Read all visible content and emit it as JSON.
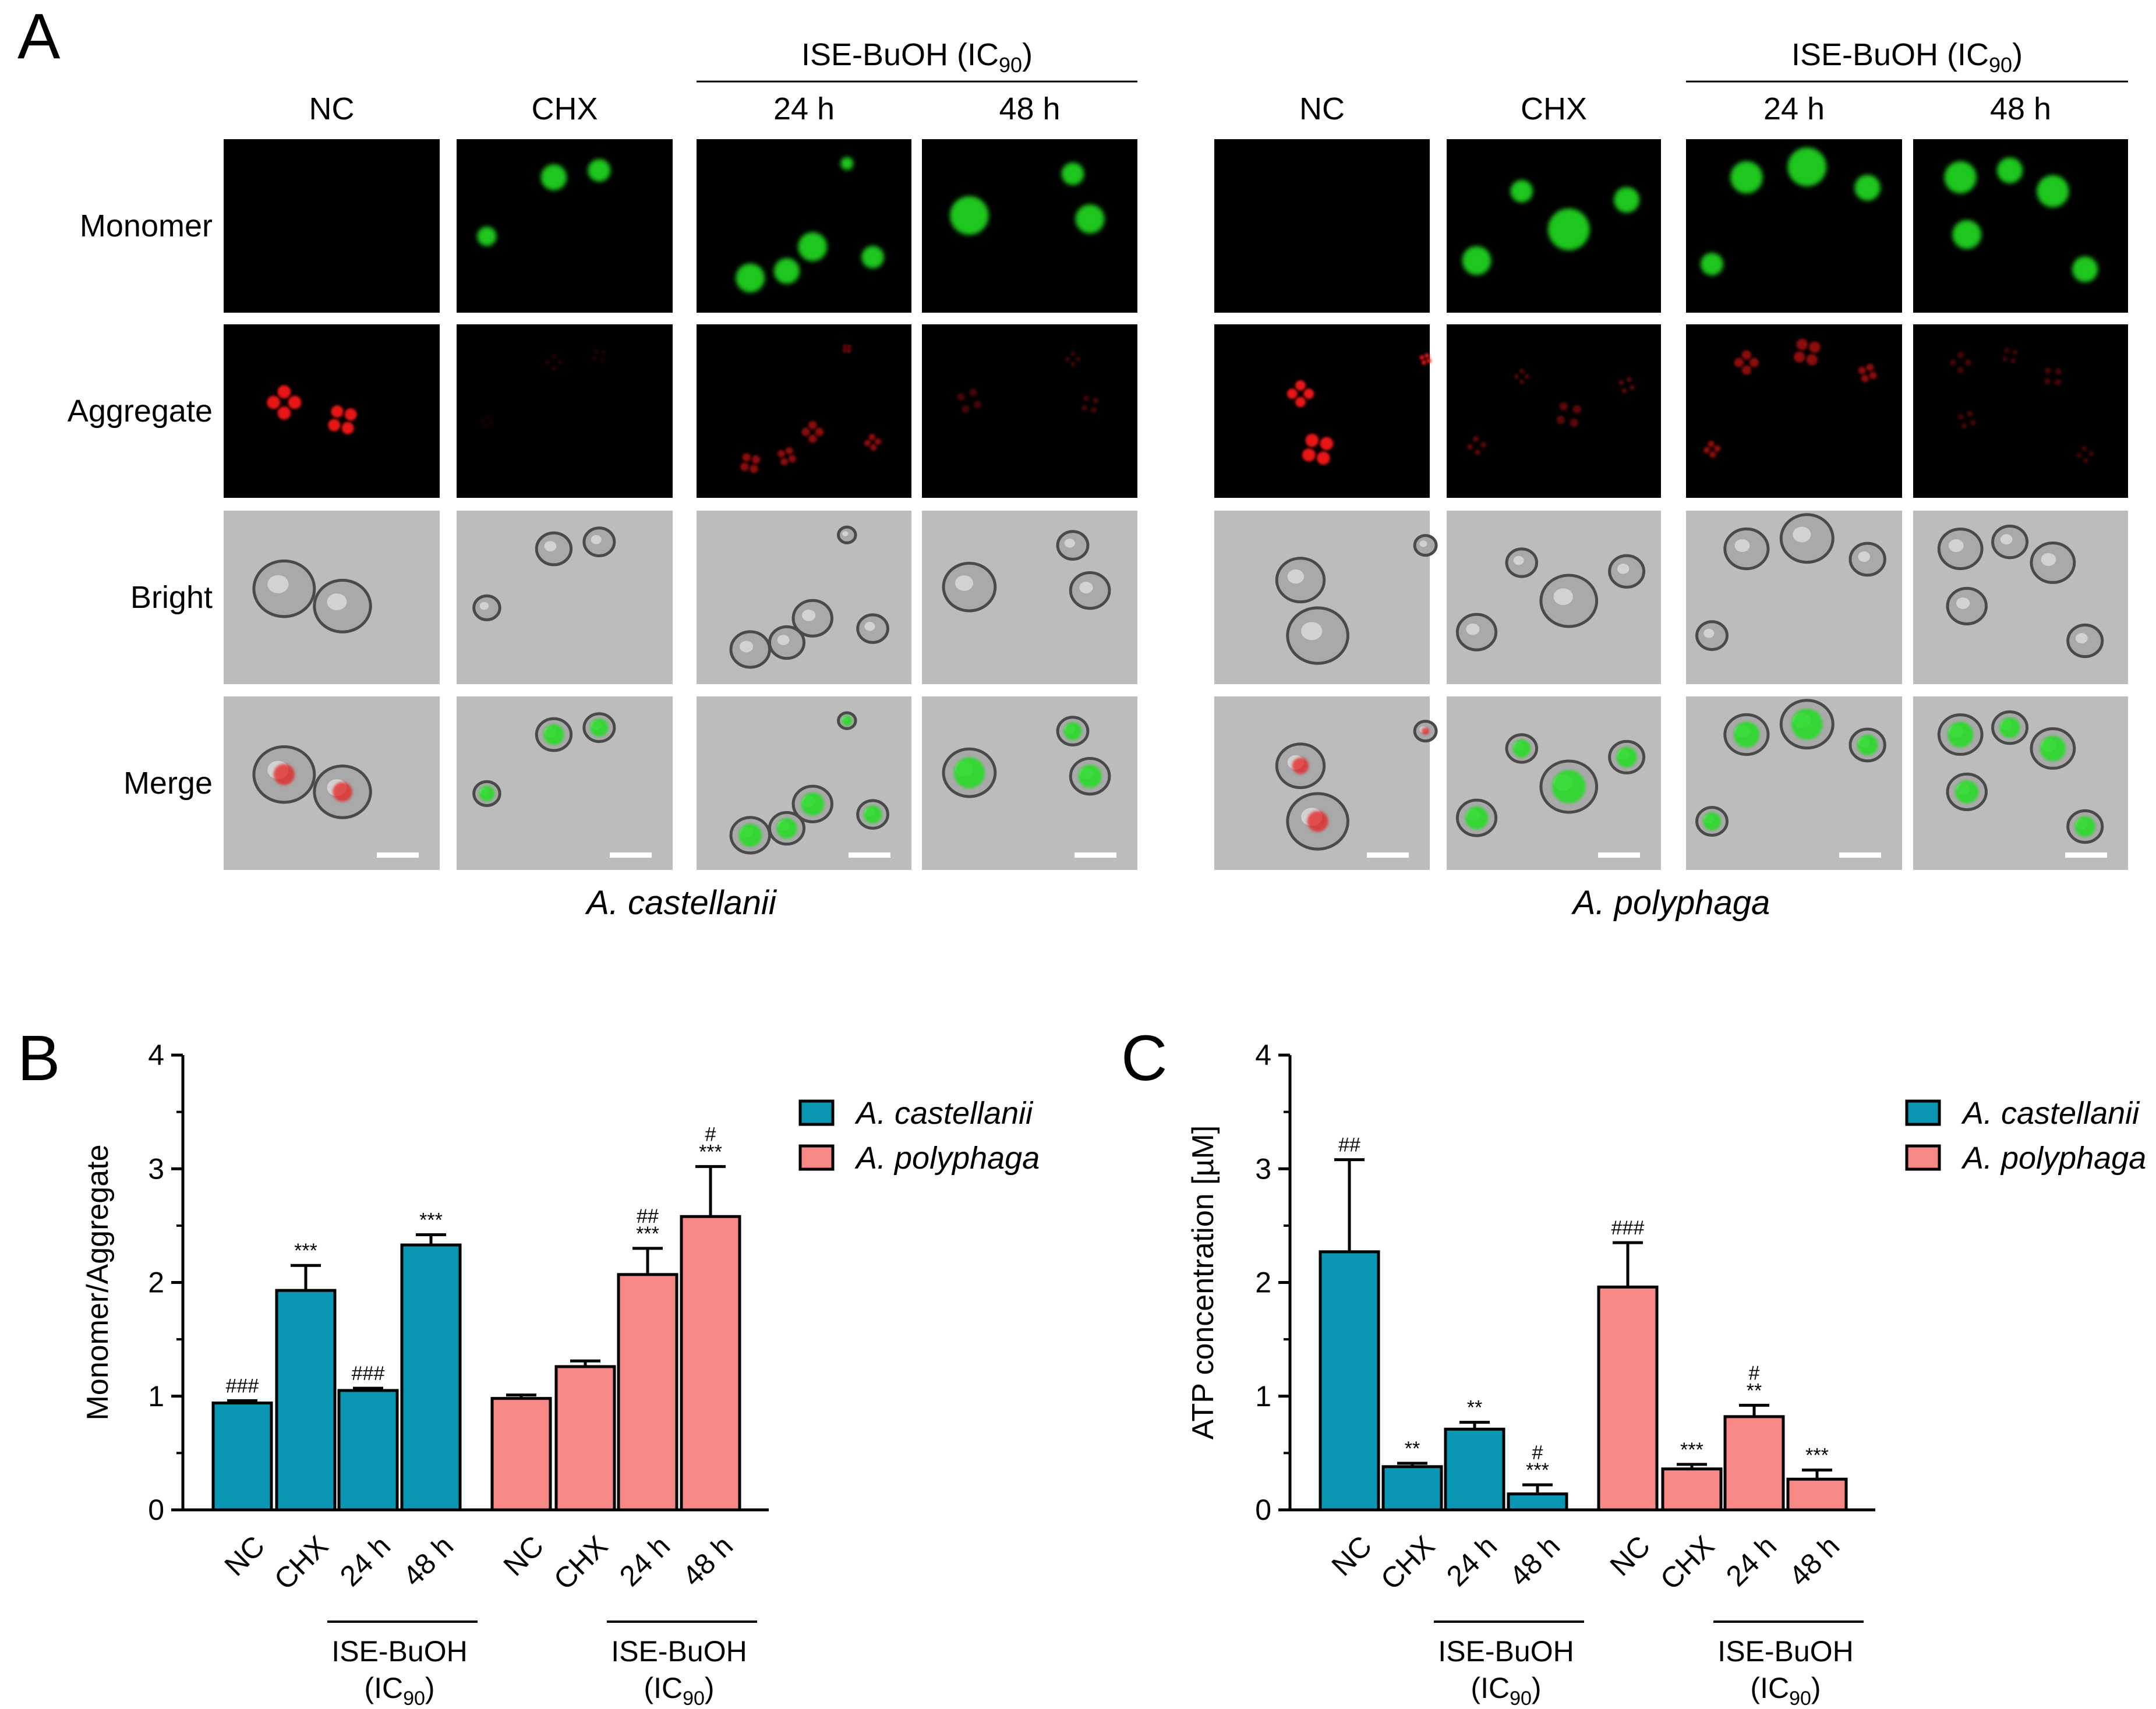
{
  "panel_labels": {
    "a": "A",
    "b": "B",
    "c": "C"
  },
  "panel_a": {
    "species": [
      "A. castellanii",
      "A. polyphaga"
    ],
    "treatment_header": "ISE-BuOH (IC90)",
    "treatment_header_main": "ISE-BuOH (IC",
    "treatment_header_sub": "90",
    "treatment_header_close": ")",
    "columns": [
      "NC",
      "CHX",
      "24 h",
      "48 h"
    ],
    "rows": [
      "Monomer",
      "Aggregate",
      "Bright",
      "Merge"
    ],
    "colors": {
      "monomer": "#22dd22",
      "aggregate": "#e81818",
      "bright_bg": "#bcbcbc",
      "scale_bar": "#ffffff"
    }
  },
  "chart_data": [
    {
      "type": "bar",
      "panel": "B",
      "ylabel": "Monomer/Aggregate",
      "ylim": [
        0,
        4
      ],
      "yticks": [
        "0",
        "1",
        "2",
        "3",
        "4"
      ],
      "categories": [
        "NC",
        "CHX",
        "24 h",
        "48 h"
      ],
      "group_label_main": "ISE-BuOH",
      "group_label_sub_main": "(IC",
      "group_label_sub": "90",
      "group_label_close": ")",
      "series": [
        {
          "name": "A. castellanii",
          "color": "#0a97b3",
          "values": [
            0.94,
            1.93,
            1.05,
            2.33
          ],
          "errors": [
            0.02,
            0.22,
            0.02,
            0.09
          ],
          "marks": [
            [
              "###"
            ],
            [
              "***"
            ],
            [
              "###"
            ],
            [
              "***"
            ]
          ]
        },
        {
          "name": "A. polyphaga",
          "color": "#f88886",
          "values": [
            0.98,
            1.26,
            2.07,
            2.58
          ],
          "errors": [
            0.03,
            0.05,
            0.23,
            0.44
          ],
          "marks": [
            [],
            [],
            [
              "##",
              "***"
            ],
            [
              "#",
              "***"
            ]
          ]
        }
      ],
      "legend_position": "top-right"
    },
    {
      "type": "bar",
      "panel": "C",
      "ylabel": "ATP concentration [µM]",
      "ylim": [
        0,
        4
      ],
      "yticks": [
        "0",
        "1",
        "2",
        "3",
        "4"
      ],
      "categories": [
        "NC",
        "CHX",
        "24 h",
        "48 h"
      ],
      "group_label_main": "ISE-BuOH",
      "group_label_sub_main": "(IC",
      "group_label_sub": "90",
      "group_label_close": ")",
      "series": [
        {
          "name": "A. castellanii",
          "color": "#0a97b3",
          "values": [
            2.27,
            0.38,
            0.71,
            0.14
          ],
          "errors": [
            0.81,
            0.03,
            0.06,
            0.08
          ],
          "marks": [
            [
              "##"
            ],
            [
              "**"
            ],
            [
              "**"
            ],
            [
              "#",
              "***"
            ]
          ]
        },
        {
          "name": "A. polyphaga",
          "color": "#f88886",
          "values": [
            1.96,
            0.36,
            0.82,
            0.27
          ],
          "errors": [
            0.39,
            0.04,
            0.1,
            0.08
          ],
          "marks": [
            [
              "###"
            ],
            [
              "***"
            ],
            [
              "#",
              "**"
            ],
            [
              "***"
            ]
          ]
        }
      ],
      "legend_position": "top-right"
    }
  ]
}
